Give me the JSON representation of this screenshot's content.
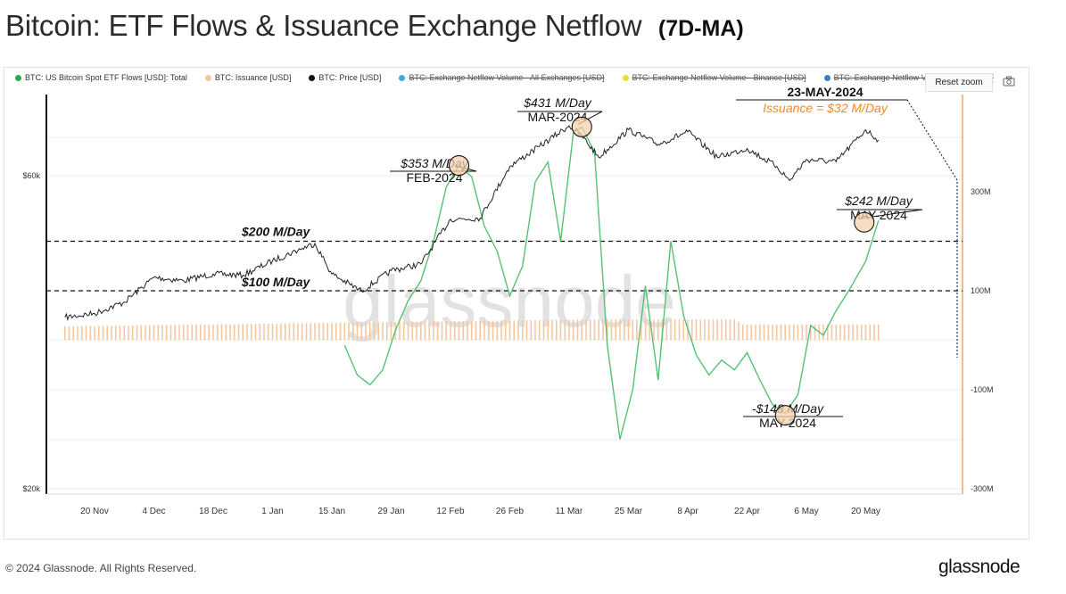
{
  "title": "Bitcoin: ETF Flows & Issuance Exchange Netflow",
  "subtitle": "(7D-MA)",
  "legend": [
    {
      "label": "BTC: US Bitcoin Spot ETF Flows [USD]: Total",
      "color": "#2fa84f",
      "struck": false
    },
    {
      "label": "BTC: Issuance [USD]",
      "color": "#f5c7a0",
      "struck": false
    },
    {
      "label": "BTC: Price [USD]",
      "color": "#111111",
      "struck": false
    },
    {
      "label": "BTC: Exchange Netflow Volume - All Exchanges [USD]",
      "color": "#4aa3e0",
      "struck": true
    },
    {
      "label": "BTC: Exchange Netflow Volume - Binance [USD]",
      "color": "#e8e033",
      "struck": true
    },
    {
      "label": "BTC: Exchange Netflow Volume - Coinbase [",
      "color": "#3b82c4",
      "struck": true
    }
  ],
  "reset_zoom": "Reset zoom",
  "watermark": "glassnode",
  "footer": "© 2024 Glassnode. All Rights Reserved.",
  "brand": "glassnode",
  "chart_data": {
    "type": "line",
    "x_ticks": [
      "20 Nov",
      "4 Dec",
      "18 Dec",
      "1 Jan",
      "15 Jan",
      "29 Jan",
      "12 Feb",
      "26 Feb",
      "11 Mar",
      "25 Mar",
      "8 Apr",
      "22 Apr",
      "6 May",
      "20 May"
    ],
    "y_left": {
      "ticks": [
        "$20k",
        "$60k"
      ],
      "scale": "log"
    },
    "y_right": {
      "ticks": [
        "300M",
        "100M",
        "-100M",
        "-300M"
      ],
      "range": [
        -300,
        300
      ],
      "unit": "M"
    },
    "reference_lines": [
      {
        "label": "$200 M/Day",
        "value": 200
      },
      {
        "label": "$100 M/Day",
        "value": 100
      }
    ],
    "annotations": [
      {
        "value": "$353 M/Day",
        "period": "FEB-2024"
      },
      {
        "value": "$431 M/Day",
        "period": "MAR-2024"
      },
      {
        "value": "$242 M/Day",
        "period": "MAY-2024"
      },
      {
        "value": "-$148 M/Day",
        "period": "MAY-2024"
      }
    ],
    "highlight": {
      "date": "23-MAY-2024",
      "note": "Issuance = $32 M/Day"
    },
    "series": [
      {
        "name": "BTC: Price [USD]",
        "dates": [
          "2023-11-13",
          "2023-11-20",
          "2023-11-27",
          "2023-12-04",
          "2023-12-11",
          "2023-12-18",
          "2023-12-25",
          "2024-01-01",
          "2024-01-08",
          "2024-01-11",
          "2024-01-15",
          "2024-01-22",
          "2024-01-29",
          "2024-02-05",
          "2024-02-12",
          "2024-02-19",
          "2024-02-26",
          "2024-03-04",
          "2024-03-11",
          "2024-03-14",
          "2024-03-18",
          "2024-03-25",
          "2024-04-01",
          "2024-04-08",
          "2024-04-15",
          "2024-04-22",
          "2024-04-29",
          "2024-05-02",
          "2024-05-06",
          "2024-05-13",
          "2024-05-20",
          "2024-05-23"
        ],
        "values": [
          36500,
          37000,
          38500,
          42000,
          41500,
          42500,
          42300,
          44500,
          46500,
          47300,
          42500,
          40000,
          43000,
          44000,
          51500,
          51700,
          62000,
          66500,
          71500,
          69000,
          64000,
          70500,
          67000,
          70000,
          64000,
          66000,
          62000,
          59000,
          63500,
          63000,
          70500,
          68000
        ]
      },
      {
        "name": "BTC: US Bitcoin Spot ETF Flows [USD]: Total",
        "unit": "M USD/day",
        "dates": [
          "2024-01-18",
          "2024-01-21",
          "2024-01-24",
          "2024-01-27",
          "2024-01-30",
          "2024-02-02",
          "2024-02-05",
          "2024-02-08",
          "2024-02-11",
          "2024-02-14",
          "2024-02-17",
          "2024-02-20",
          "2024-02-23",
          "2024-02-26",
          "2024-02-29",
          "2024-03-03",
          "2024-03-06",
          "2024-03-09",
          "2024-03-12",
          "2024-03-14",
          "2024-03-17",
          "2024-03-20",
          "2024-03-23",
          "2024-03-26",
          "2024-03-29",
          "2024-04-01",
          "2024-04-04",
          "2024-04-07",
          "2024-04-10",
          "2024-04-13",
          "2024-04-16",
          "2024-04-19",
          "2024-04-22",
          "2024-04-25",
          "2024-04-28",
          "2024-05-01",
          "2024-05-04",
          "2024-05-07",
          "2024-05-10",
          "2024-05-13",
          "2024-05-16",
          "2024-05-20",
          "2024-05-23"
        ],
        "values": [
          -10,
          -70,
          -90,
          -60,
          20,
          80,
          120,
          200,
          310,
          353,
          330,
          230,
          180,
          90,
          150,
          320,
          360,
          200,
          420,
          431,
          380,
          -10,
          -200,
          -100,
          110,
          -80,
          200,
          50,
          -30,
          -70,
          -40,
          -60,
          -25,
          -80,
          -130,
          -148,
          -110,
          30,
          10,
          60,
          100,
          160,
          242
        ]
      },
      {
        "name": "BTC: Issuance [USD]",
        "unit": "M USD/day",
        "dates": [
          "2023-11-13",
          "2024-03-14",
          "2024-04-19",
          "2024-04-21",
          "2024-05-23"
        ],
        "values": [
          28,
          42,
          42,
          32,
          32
        ]
      }
    ]
  }
}
